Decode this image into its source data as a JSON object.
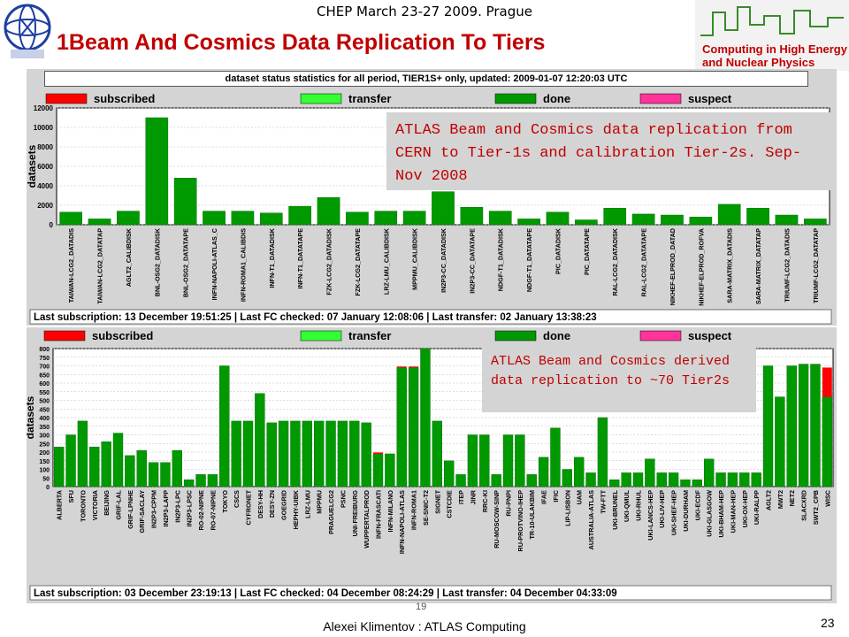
{
  "slide": {
    "conference": "CHEP  March 23-27 2009. Prague",
    "title": "1Beam And Cosmics Data Replication To Tiers",
    "chep_line1": "Computing in High Energy",
    "chep_line2": "and Nuclear Physics",
    "author": "Alexei Klimentov :  ATLAS Computing",
    "page": "23",
    "small_number": "19"
  },
  "colors": {
    "subscribed": "#ff0000",
    "transfer": "#33ff33",
    "done": "#009900",
    "suspect": "#ff3399",
    "annotation": "#c00000"
  },
  "legend": [
    {
      "key": "subscribed",
      "label": "subscribed"
    },
    {
      "key": "transfer",
      "label": "transfer"
    },
    {
      "key": "done",
      "label": "done"
    },
    {
      "key": "suspect",
      "label": "suspect"
    }
  ],
  "chart_data": [
    {
      "type": "bar",
      "title": "dataset status statistics for all period, TIER1S+ only, updated: 2009-01-07 12:20:03 UTC",
      "ylabel": "datasets",
      "ylim": [
        0,
        12000
      ],
      "yticks": [
        0,
        2000,
        4000,
        6000,
        8000,
        10000,
        12000
      ],
      "grid": true,
      "legend_position": "top",
      "categories": [
        "TAIWAN-LCG2_DATADIS",
        "TAIWAN-LCG2_DATATAP",
        "AGLT2_CALIBDISK",
        "BNL-OSG2_DATADISK",
        "BNL-OSG2_DATATAPE",
        "INFN-NAPOLI-ATLAS_C",
        "INFN-ROMA1_CALIBDIS",
        "INFN-T1_DATADISK",
        "INFN-T1_DATATAPE",
        "FZK-LCG2_DATADISK",
        "FZK-LCG2_DATATAPE",
        "LRZ-LMU_CALIBDISK",
        "MPPMU_CALIBDISK",
        "IN2P3-CC_DATADISK",
        "IN2P3-CC_DATATAPE",
        "NDGF-T1_DATADISK",
        "NDGF-T1_DATATAPE",
        "PIC_DATADISK",
        "PIC_DATATAPE",
        "RAL-LCG2_DATADISK",
        "RAL-LCG2_DATATAPE",
        "NIKHEF-ELPROD_DATAD",
        "NIKHEF-ELPROD_ROFVA",
        "SARA-MATRIX_DATADIS",
        "SARA-MATRIX_DATATAP",
        "TRIUMF-LCG2_DATADIS",
        "TRIUMF-LCG2_DATATAP"
      ],
      "series": [
        {
          "name": "done",
          "values": [
            1300,
            600,
            1400,
            11000,
            4800,
            1400,
            1400,
            1200,
            1900,
            2800,
            1300,
            1400,
            1400,
            3400,
            1800,
            1400,
            600,
            1300,
            500,
            1700,
            1100,
            1000,
            800,
            2100,
            1700,
            1000,
            600
          ]
        },
        {
          "name": "subscribed",
          "values": [
            0,
            0,
            0,
            0,
            0,
            0,
            0,
            0,
            0,
            0,
            0,
            0,
            0,
            0,
            0,
            0,
            0,
            0,
            0,
            0,
            0,
            0,
            0,
            0,
            0,
            0,
            0
          ]
        }
      ],
      "footer": "Last subscription: 13 December 19:51:25  |  Last FC checked: 07 January 12:08:06  |  Last transfer: 02 January 13:38:23",
      "annotation": "ATLAS Beam and Cosmics data replication from CERN to Tier-1s and calibration Tier-2s. Sep-Nov 2008"
    },
    {
      "type": "bar",
      "ylabel": "datasets",
      "ylim": [
        0,
        800
      ],
      "yticks": [
        0,
        50,
        100,
        150,
        200,
        250,
        300,
        350,
        400,
        450,
        500,
        550,
        600,
        650,
        700,
        750,
        800
      ],
      "grid": true,
      "legend_position": "top",
      "categories": [
        "ALBERTA",
        "SFU",
        "TORONTO",
        "VICTORIA",
        "BEIJING",
        "GRIF-LAL",
        "GRIF-LPNHE",
        "GRIF-SACLAY",
        "IN2P3-CPPM",
        "IN2P3-LAPP",
        "IN2P3-LPC",
        "IN2P3-LPSC",
        "RO-02-NIPNE",
        "RO-07-NIPNE",
        "TOKYO",
        "CSCS",
        "CYFRONET",
        "DESY-HH",
        "DESY-ZN",
        "GOEGRID",
        "HEPHY-UIBK",
        "LRZ-LMU",
        "MPPMU",
        "PRAGUELCG2",
        "PSNC",
        "UNI-FREIBURG",
        "WUPPERTALPROD",
        "INFN-FRASCATI",
        "INFN-MILANO",
        "INFN-NAPOLI-ATLAS",
        "INFN-ROMA1",
        "SE-SNIC-T2",
        "SIGNET",
        "CSTCDIE",
        "ITEP",
        "JINR",
        "RRC-KI",
        "RU-MOSCOW-SINP",
        "RU-PNPI",
        "RU-PROTVINO-IHEP",
        "TR-10-ULAKBIM",
        "IFAE",
        "IFIC",
        "LIP-LISBON",
        "UAM",
        "AUSTRALIA-ATLAS",
        "TW-FTT",
        "UKI-BRUNEL",
        "UKI-QMUL",
        "UKI-RHUL",
        "UKI-LANCS-HEP",
        "UKI-LIV-HEP",
        "UKI-SHEF-HEP",
        "UKI-DURHAM",
        "UKI-ECDF",
        "UKI-GLASGOW",
        "UKI-BHAM-HEP",
        "UKI-MAN-HEP",
        "UKI-OX-HEP",
        "UKI-RALPP",
        "AGLT2",
        "MWT2",
        "NET2",
        "SLACXRD",
        "SWT2_CPB",
        "WISC"
      ],
      "series": [
        {
          "name": "done",
          "values": [
            230,
            300,
            380,
            230,
            260,
            310,
            180,
            210,
            140,
            140,
            210,
            40,
            70,
            70,
            700,
            380,
            380,
            540,
            370,
            380,
            380,
            380,
            380,
            380,
            380,
            380,
            370,
            190,
            190,
            690,
            690,
            800,
            380,
            150,
            70,
            300,
            300,
            70,
            300,
            300,
            70,
            170,
            340,
            100,
            170,
            80,
            400,
            40,
            80,
            80,
            160,
            80,
            80,
            40,
            40,
            160,
            80,
            80,
            80,
            80,
            700,
            520,
            700,
            710,
            710,
            520
          ]
        },
        {
          "name": "subscribed",
          "values": [
            0,
            0,
            0,
            0,
            0,
            0,
            0,
            0,
            0,
            0,
            0,
            0,
            0,
            0,
            0,
            0,
            0,
            0,
            0,
            0,
            0,
            0,
            0,
            0,
            0,
            0,
            0,
            8,
            0,
            6,
            6,
            0,
            0,
            0,
            0,
            0,
            0,
            0,
            0,
            0,
            0,
            0,
            0,
            0,
            0,
            0,
            0,
            0,
            0,
            0,
            0,
            0,
            0,
            0,
            0,
            0,
            0,
            0,
            0,
            0,
            0,
            0,
            0,
            0,
            0,
            170
          ]
        }
      ],
      "footer": "Last subscription: 03 December 23:19:13  |  Last FC checked: 04 December 08:24:29  |  Last transfer: 04 December 04:33:09",
      "annotation": "ATLAS Beam and Cosmics derived data replication to ~70 Tier2s"
    }
  ]
}
